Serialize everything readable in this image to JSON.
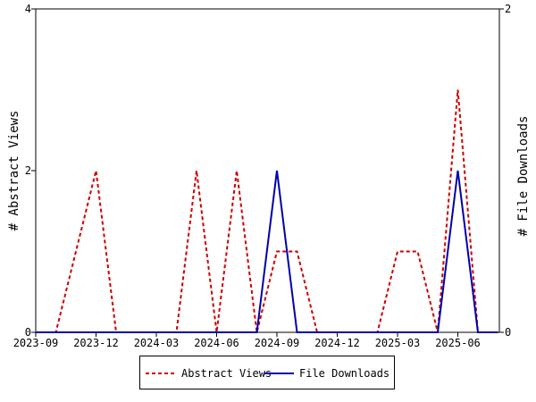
{
  "chart_data": {
    "type": "line",
    "x": [
      "2023-09",
      "2023-10",
      "2023-11",
      "2023-12",
      "2024-01",
      "2024-02",
      "2024-03",
      "2024-04",
      "2024-05",
      "2024-06",
      "2024-07",
      "2024-08",
      "2024-09",
      "2024-10",
      "2024-11",
      "2024-12",
      "2025-01",
      "2025-02",
      "2025-03",
      "2025-04",
      "2025-05",
      "2025-06",
      "2025-07",
      "2025-08"
    ],
    "x_tick_labels": [
      "2023-09",
      "2023-12",
      "2024-03",
      "2024-06",
      "2024-09",
      "2024-12",
      "2025-03",
      "2025-06"
    ],
    "ylabel": "# Abstract Views",
    "y2label": "# File Downloads",
    "ylim": [
      0,
      4
    ],
    "y2lim": [
      0,
      2
    ],
    "y_tick_labels": [
      "0",
      "2",
      "4"
    ],
    "y2_tick_labels": [
      "0",
      "2"
    ],
    "grid": false,
    "legend_position": "bottom",
    "series": [
      {
        "name": "Abstract Views",
        "axis": "left",
        "style": "dashed",
        "color": "#cc0000",
        "values": [
          0,
          0,
          1,
          2,
          0,
          0,
          0,
          0,
          2,
          0,
          2,
          0,
          1,
          1,
          0,
          0,
          0,
          0,
          1,
          1,
          0,
          3,
          0,
          0
        ]
      },
      {
        "name": "File Downloads",
        "axis": "right",
        "style": "solid",
        "color": "#0000aa",
        "values": [
          0,
          0,
          0,
          0,
          0,
          0,
          0,
          0,
          0,
          0,
          0,
          0,
          1,
          0,
          0,
          0,
          0,
          0,
          0,
          0,
          0,
          1,
          0,
          0
        ]
      }
    ]
  }
}
